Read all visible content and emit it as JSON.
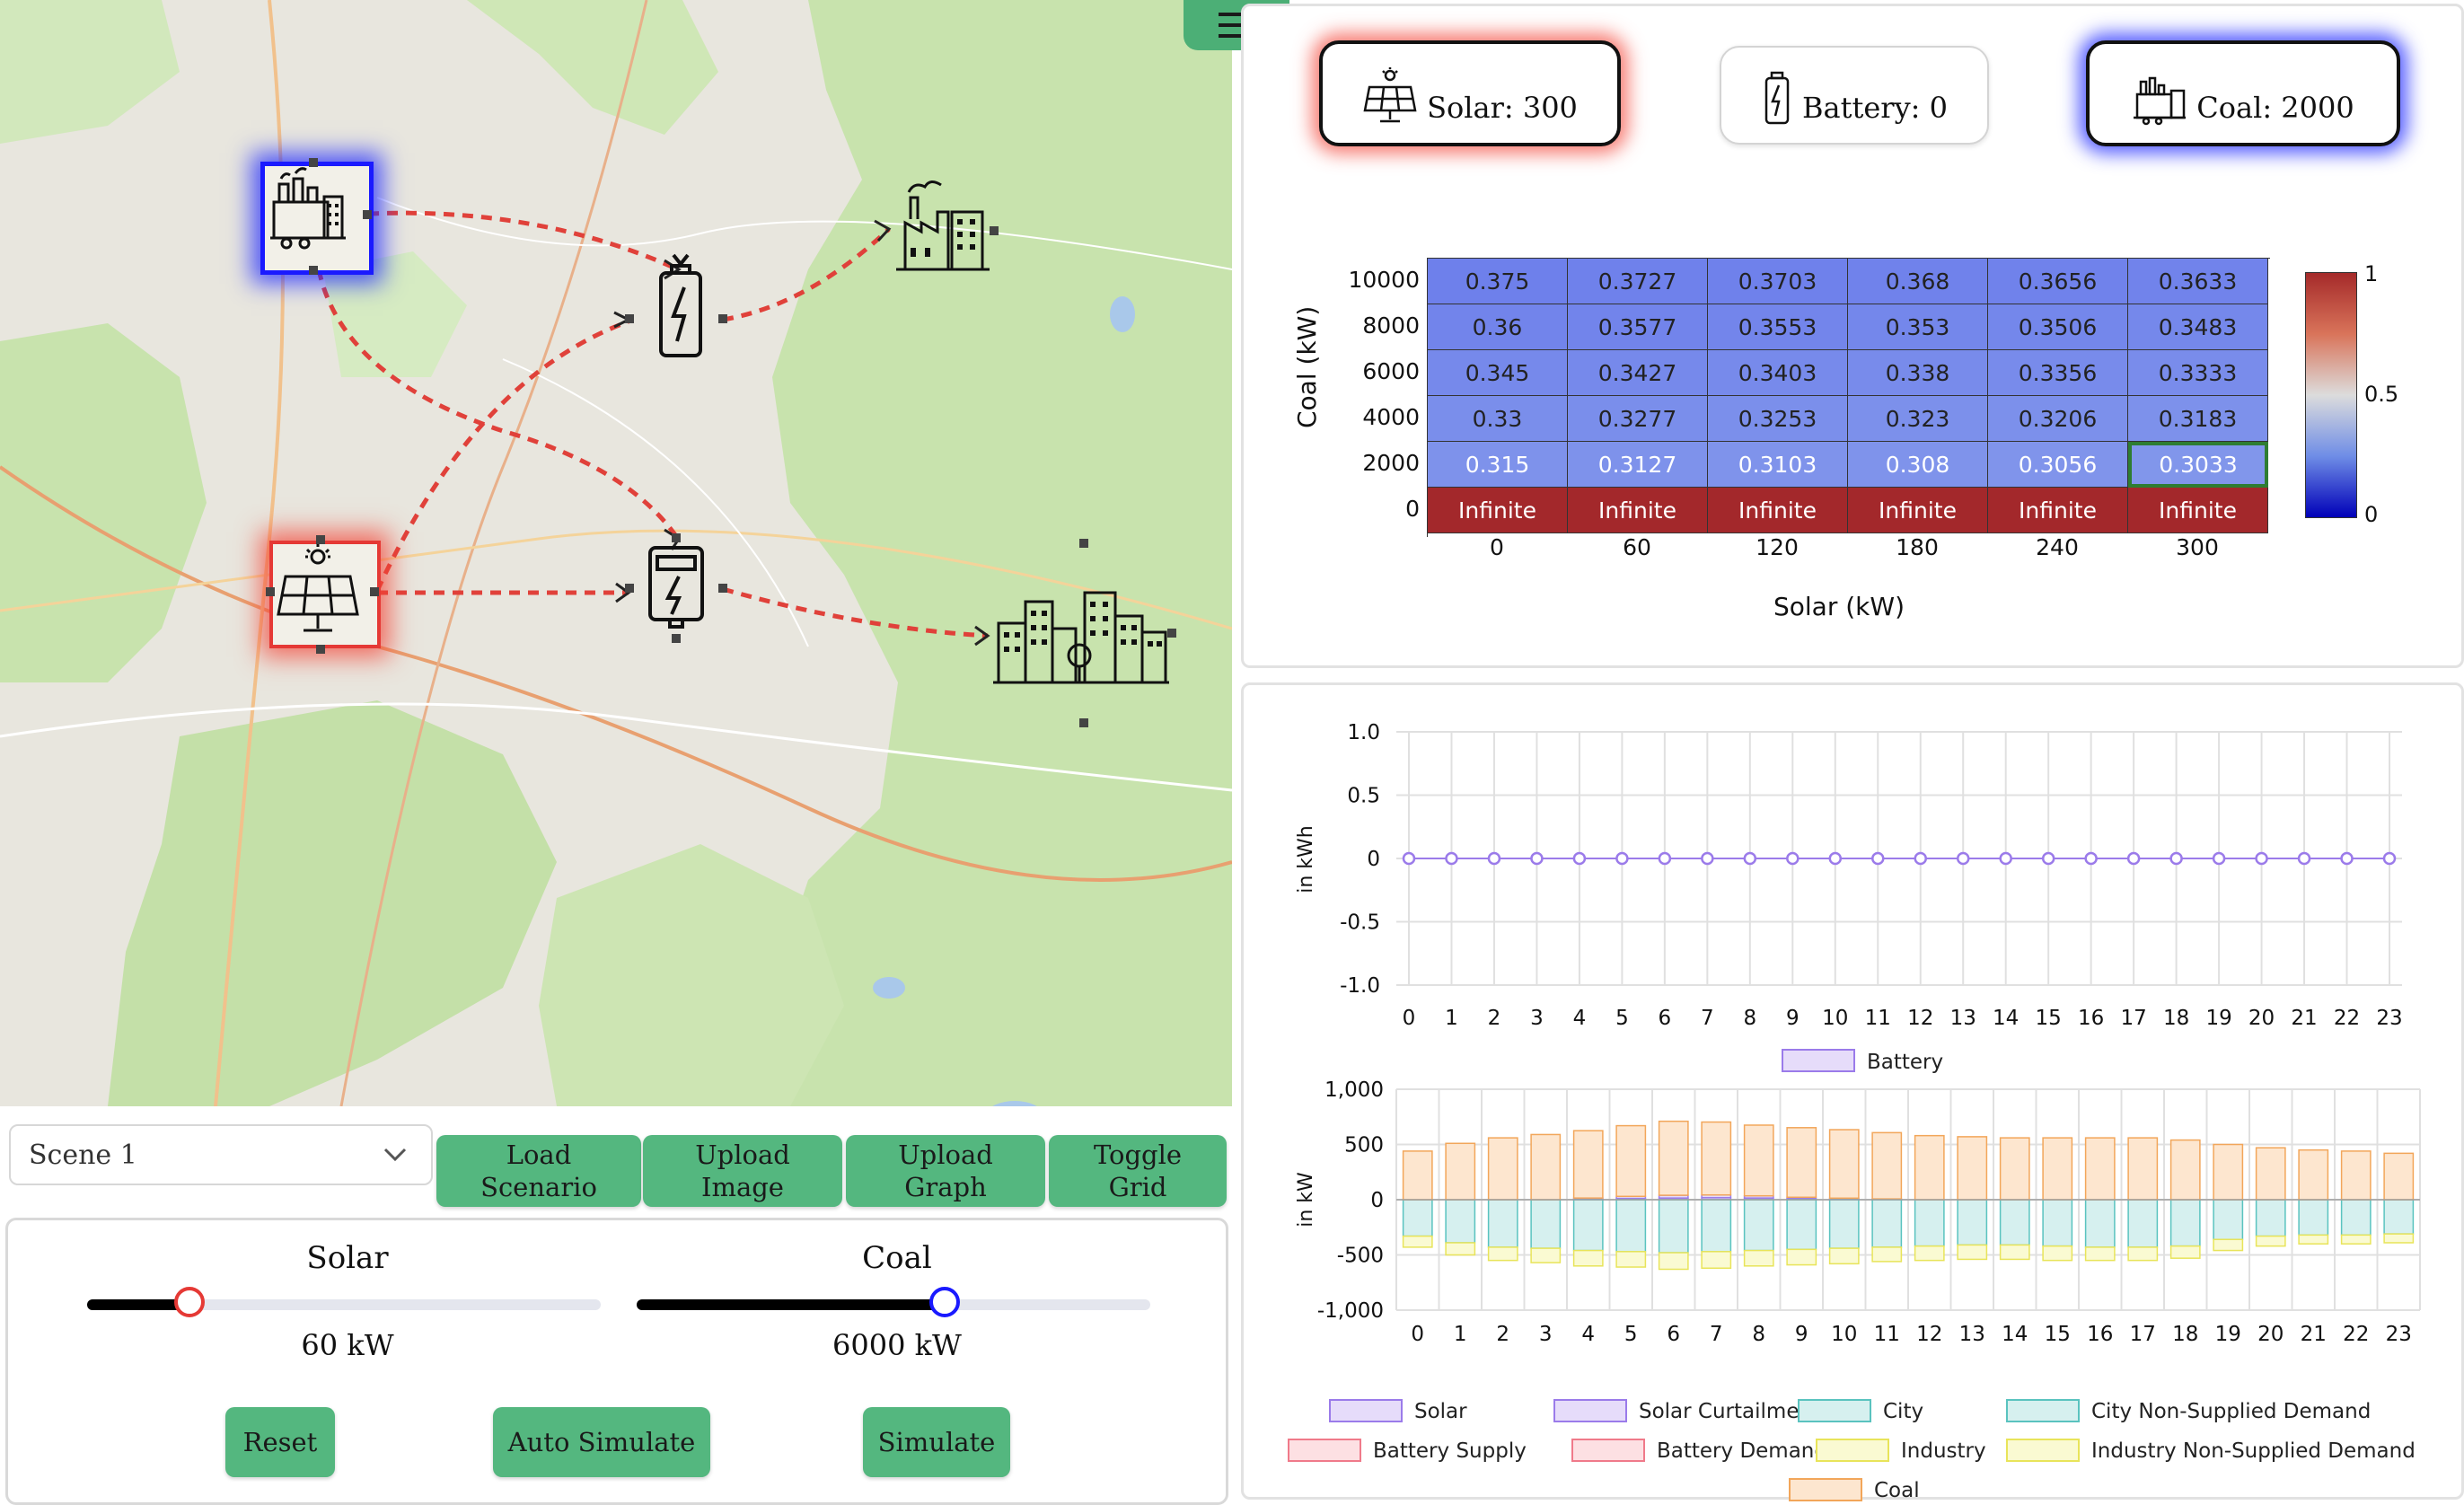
{
  "menu": {
    "icon": "hamburger-icon"
  },
  "map": {
    "nodes": [
      "coal-plant-icon",
      "battery-icon",
      "industry-icon",
      "solar-panel-icon",
      "meter-icon",
      "city-icon"
    ]
  },
  "controls": {
    "scene": {
      "selected": "Scene 1"
    },
    "buttons": {
      "load_scenario": "Load\nScenario",
      "upload_image": "Upload\nImage",
      "upload_graph": "Upload\nGraph",
      "toggle_grid": "Toggle\nGrid"
    },
    "sliders": {
      "solar": {
        "label": "Solar",
        "value_text": "60 kW",
        "fraction": 0.2,
        "color": "#e53935"
      },
      "coal": {
        "label": "Coal",
        "value_text": "6000 kW",
        "fraction": 0.6,
        "color": "#1a1aff"
      }
    },
    "actions": {
      "reset": "Reset",
      "auto_simulate": "Auto Simulate",
      "simulate": "Simulate"
    }
  },
  "cards": {
    "solar": "Solar: 300",
    "battery": "Battery: 0",
    "coal": "Coal: 2000"
  },
  "chart_data": [
    {
      "type": "heatmap",
      "xlabel": "Solar (kW)",
      "ylabel": "Coal (kW)",
      "x": [
        "0",
        "60",
        "120",
        "180",
        "240",
        "300"
      ],
      "y": [
        "10000",
        "8000",
        "6000",
        "4000",
        "2000",
        "0"
      ],
      "values": [
        [
          "0.375",
          "0.3727",
          "0.3703",
          "0.368",
          "0.3656",
          "0.3633"
        ],
        [
          "0.36",
          "0.3577",
          "0.3553",
          "0.353",
          "0.3506",
          "0.3483"
        ],
        [
          "0.345",
          "0.3427",
          "0.3403",
          "0.338",
          "0.3356",
          "0.3333"
        ],
        [
          "0.33",
          "0.3277",
          "0.3253",
          "0.323",
          "0.3206",
          "0.3183"
        ],
        [
          "0.315",
          "0.3127",
          "0.3103",
          "0.308",
          "0.3056",
          "0.3033"
        ],
        [
          "Infinite",
          "Infinite",
          "Infinite",
          "Infinite",
          "Infinite",
          "Infinite"
        ]
      ],
      "highlight": {
        "row": 4,
        "col": 5,
        "color": "#2e7d32"
      },
      "colorbar": {
        "max_label": "1",
        "mid_label": "0.5",
        "min_label": "0"
      }
    },
    {
      "type": "line",
      "ylabel": "in kWh",
      "x": [
        0,
        1,
        2,
        3,
        4,
        5,
        6,
        7,
        8,
        9,
        10,
        11,
        12,
        13,
        14,
        15,
        16,
        17,
        18,
        19,
        20,
        21,
        22,
        23
      ],
      "yticks": [
        "1.0",
        "0.5",
        "0",
        "-0.5",
        "-1.0"
      ],
      "ylim": [
        -1,
        1
      ],
      "series": [
        {
          "name": "Battery",
          "values": [
            0,
            0,
            0,
            0,
            0,
            0,
            0,
            0,
            0,
            0,
            0,
            0,
            0,
            0,
            0,
            0,
            0,
            0,
            0,
            0,
            0,
            0,
            0,
            0
          ],
          "color": "#9b7bea"
        }
      ]
    },
    {
      "type": "bar",
      "ylabel": "in kW",
      "x": [
        0,
        1,
        2,
        3,
        4,
        5,
        6,
        7,
        8,
        9,
        10,
        11,
        12,
        13,
        14,
        15,
        16,
        17,
        18,
        19,
        20,
        21,
        22,
        23
      ],
      "yticks": [
        "1,000",
        "500",
        "0",
        "-500",
        "-1,000"
      ],
      "ylim": [
        -1000,
        1000
      ],
      "stacked": true,
      "series": [
        {
          "name": "Solar",
          "color": "#9b7bea",
          "values": [
            0,
            0,
            0,
            0,
            5,
            10,
            15,
            18,
            15,
            10,
            6,
            3,
            0,
            0,
            0,
            0,
            0,
            0,
            0,
            0,
            0,
            0,
            0,
            0
          ]
        },
        {
          "name": "Solar Curtailment",
          "color": "#9b7bea",
          "values": [
            0,
            0,
            0,
            0,
            10,
            20,
            25,
            25,
            20,
            12,
            8,
            4,
            0,
            0,
            0,
            0,
            0,
            0,
            0,
            0,
            0,
            0,
            0,
            0
          ]
        },
        {
          "name": "City",
          "color": "#5ac3bf",
          "values": [
            -330,
            -390,
            -430,
            -440,
            -460,
            -470,
            -480,
            -470,
            -460,
            -450,
            -440,
            -430,
            -420,
            -410,
            -410,
            -420,
            -430,
            -430,
            -420,
            -360,
            -330,
            -320,
            -320,
            -310
          ]
        },
        {
          "name": "City Non-Supplied Demand",
          "color": "#5ac3bf",
          "values": [
            0,
            0,
            0,
            0,
            0,
            0,
            0,
            0,
            0,
            0,
            0,
            0,
            0,
            0,
            0,
            0,
            0,
            0,
            0,
            0,
            0,
            0,
            0,
            0
          ]
        },
        {
          "name": "Battery Supply",
          "color": "#f07a8a",
          "values": [
            0,
            0,
            0,
            0,
            0,
            0,
            0,
            0,
            0,
            0,
            0,
            0,
            0,
            0,
            0,
            0,
            0,
            0,
            0,
            0,
            0,
            0,
            0,
            0
          ]
        },
        {
          "name": "Battery Demand",
          "color": "#f07a8a",
          "values": [
            0,
            0,
            0,
            0,
            0,
            0,
            0,
            0,
            0,
            0,
            0,
            0,
            0,
            0,
            0,
            0,
            0,
            0,
            0,
            0,
            0,
            0,
            0,
            0
          ]
        },
        {
          "name": "Industry",
          "color": "#e8e45a",
          "values": [
            -100,
            -110,
            -120,
            -130,
            -140,
            -140,
            -150,
            -150,
            -140,
            -140,
            -140,
            -130,
            -130,
            -130,
            -130,
            -130,
            -120,
            -120,
            -110,
            -100,
            -90,
            -80,
            -80,
            -80
          ]
        },
        {
          "name": "Industry Non-Supplied Demand",
          "color": "#e8e45a",
          "values": [
            0,
            0,
            0,
            0,
            0,
            0,
            0,
            0,
            0,
            0,
            0,
            0,
            0,
            0,
            0,
            0,
            0,
            0,
            0,
            0,
            0,
            0,
            0,
            0
          ]
        },
        {
          "name": "Coal",
          "color": "#f2a65a",
          "values": [
            440,
            510,
            560,
            590,
            610,
            640,
            670,
            660,
            640,
            630,
            620,
            600,
            580,
            570,
            560,
            560,
            560,
            560,
            540,
            500,
            470,
            450,
            440,
            420
          ]
        }
      ]
    }
  ]
}
